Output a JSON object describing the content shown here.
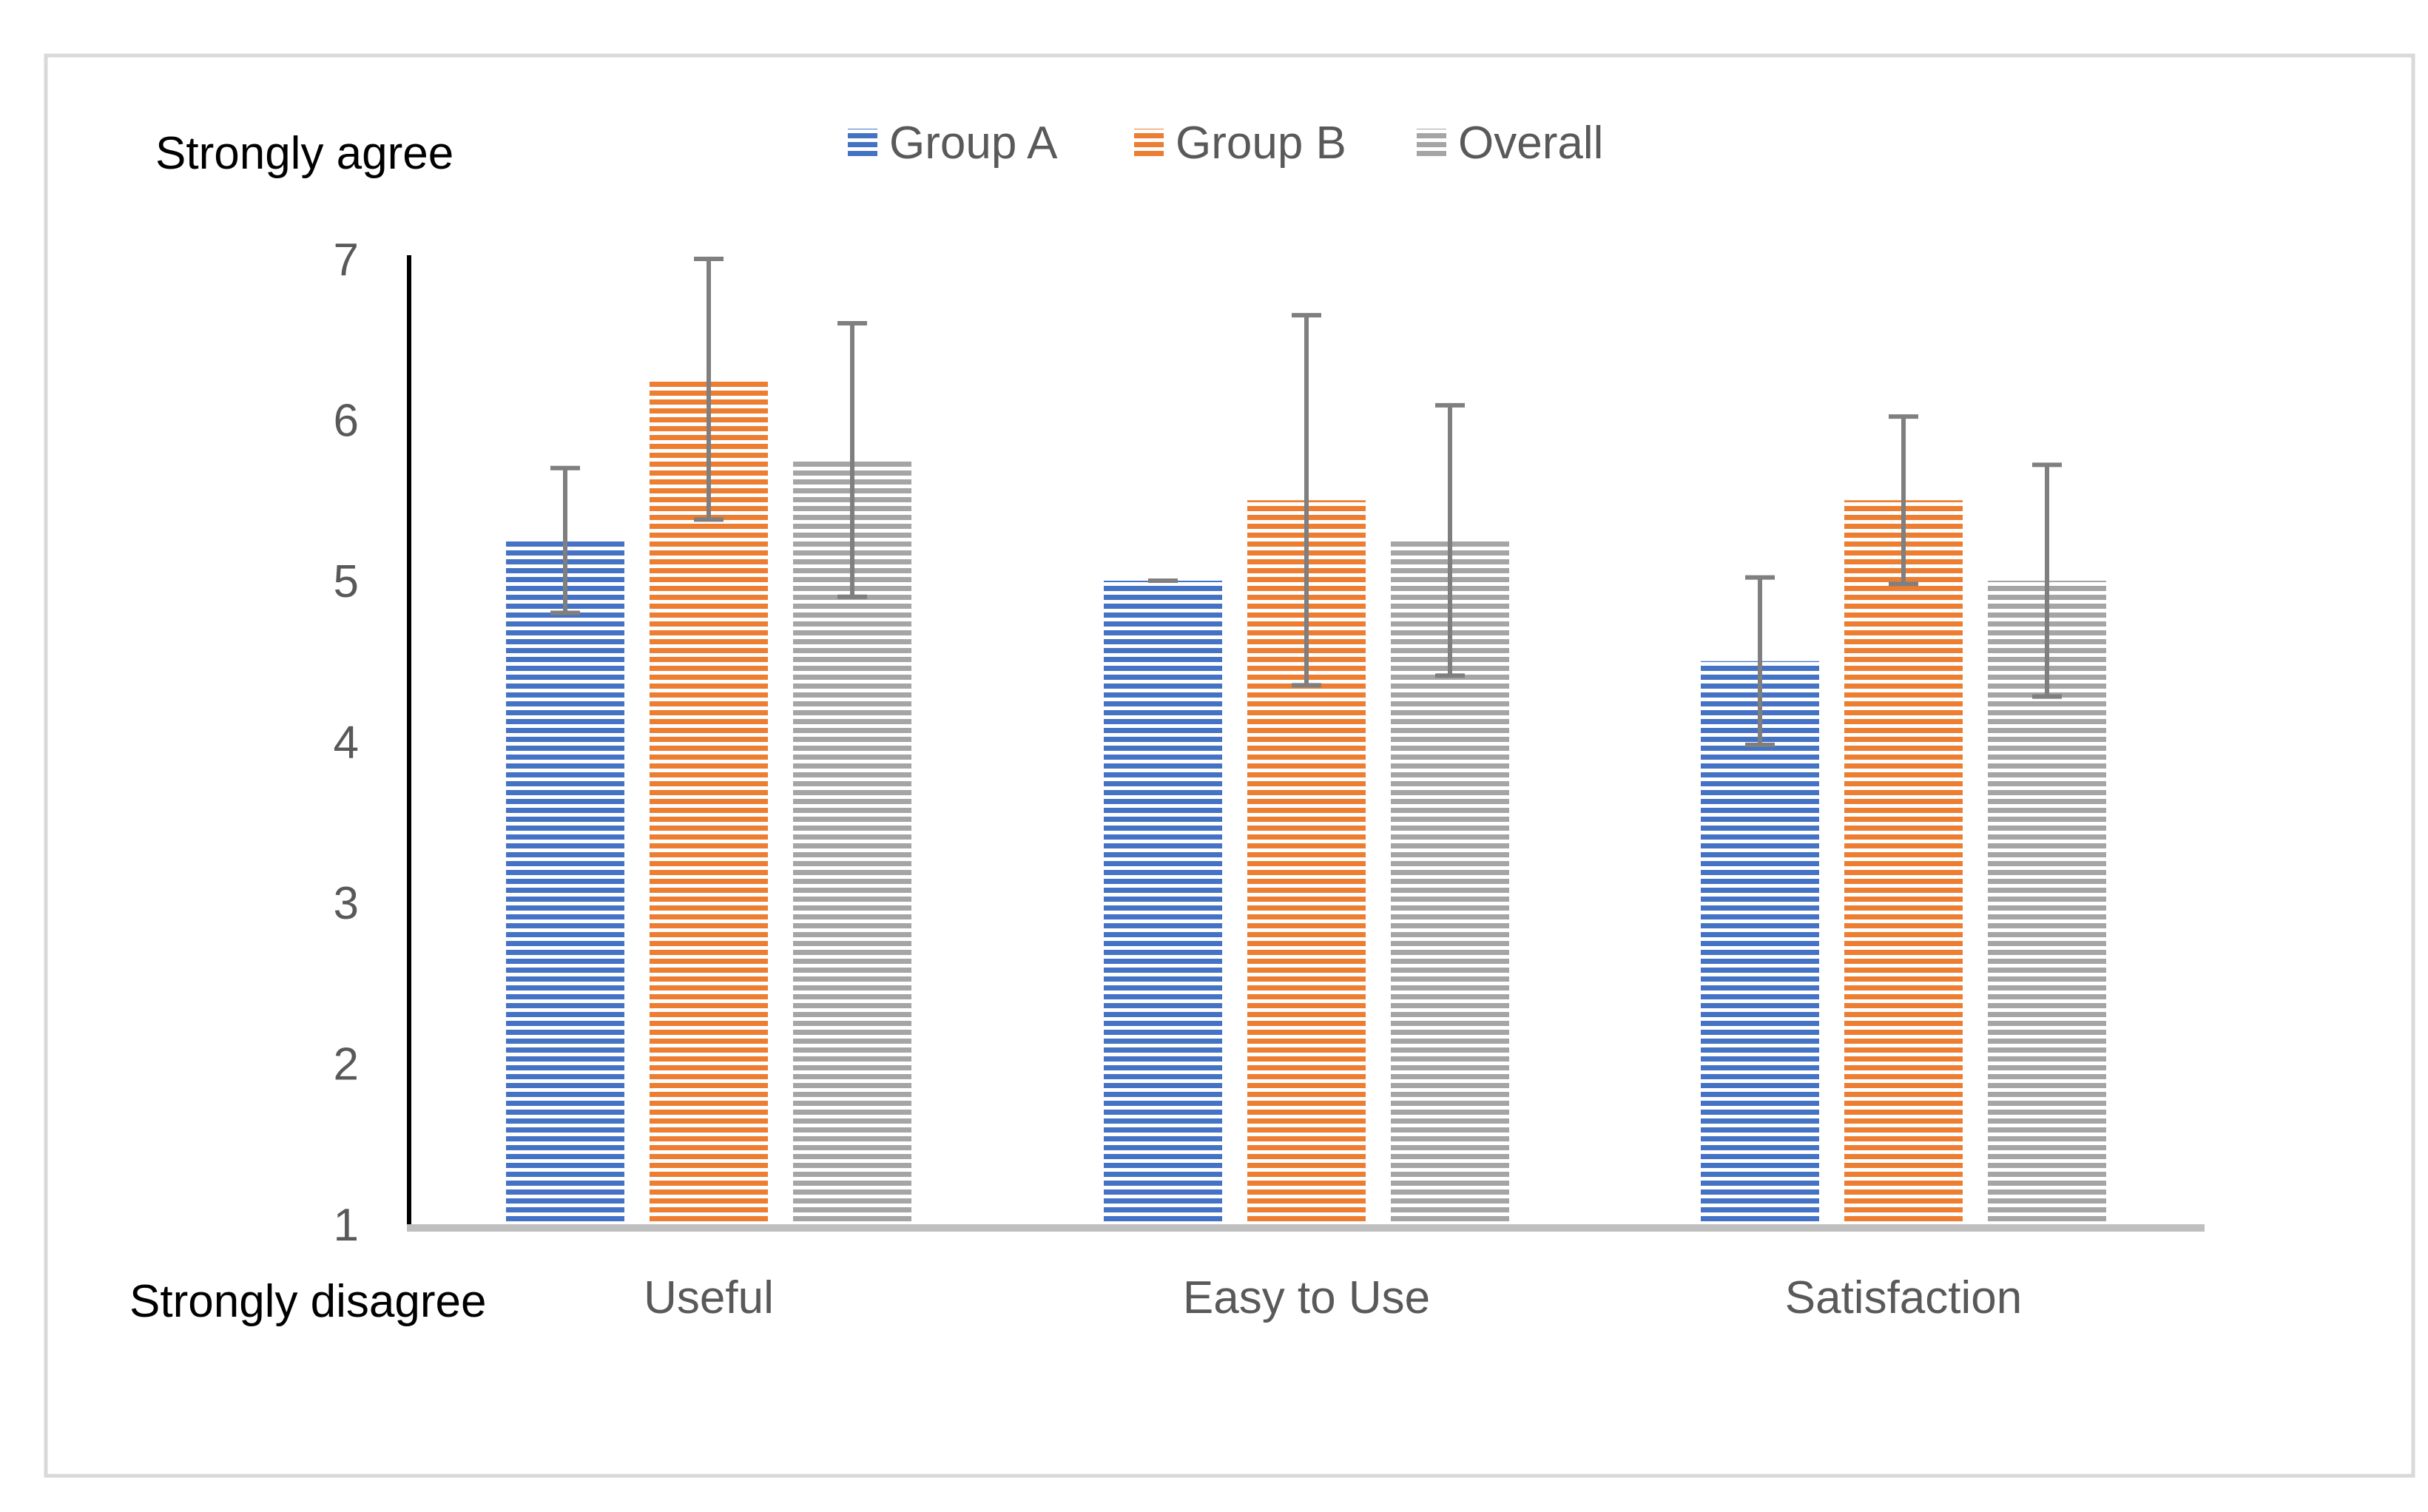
{
  "chart_data": {
    "type": "bar",
    "title": "",
    "xlabel": "",
    "ylabel": "",
    "y_top_label": "Strongly agree",
    "y_bottom_label": "Strongly disagree",
    "categories": [
      "Useful",
      "Easy to Use",
      "Satisfaction"
    ],
    "ylim": [
      1,
      7
    ],
    "yticks": [
      "1",
      "2",
      "3",
      "4",
      "5",
      "6",
      "7"
    ],
    "grid": false,
    "legend_position": "top-center",
    "series": [
      {
        "name": "Group A",
        "color": "#4472C4",
        "values": [
          5.25,
          5.0,
          4.5
        ],
        "errors": [
          0.45,
          0.0,
          0.52
        ]
      },
      {
        "name": "Group B",
        "color": "#ED7D31",
        "values": [
          6.25,
          5.5,
          5.5
        ],
        "errors": [
          0.87,
          1.15,
          0.52
        ]
      },
      {
        "name": "Overall",
        "color": "#A5A5A5",
        "values": [
          5.75,
          5.25,
          5.0
        ],
        "errors": [
          0.85,
          0.84,
          0.72
        ]
      }
    ]
  }
}
